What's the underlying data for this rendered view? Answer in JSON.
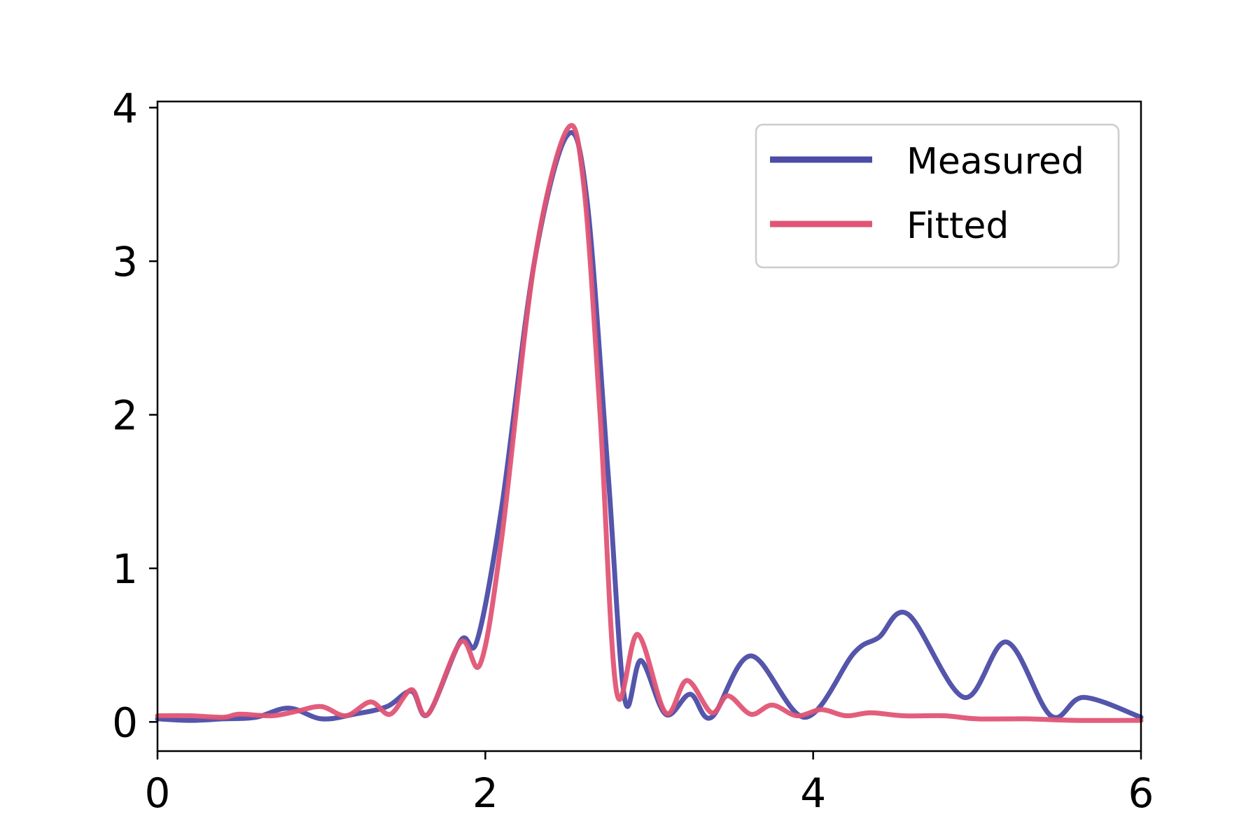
{
  "chart_data": {
    "type": "line",
    "title": "",
    "xlabel": "",
    "ylabel": "",
    "xlim": [
      0,
      6
    ],
    "ylim": [
      -0.19,
      4.04
    ],
    "xticks": [
      0,
      2,
      4,
      6
    ],
    "yticks": [
      0,
      1,
      2,
      3,
      4
    ],
    "grid": false,
    "legend_position": "top-right",
    "series": [
      {
        "name": "Measured",
        "color": "#4b4ca6",
        "points": [
          [
            0,
            0.02
          ],
          [
            0.2,
            0.01
          ],
          [
            0.4,
            0.02
          ],
          [
            0.6,
            0.03
          ],
          [
            0.8,
            0.09
          ],
          [
            1.0,
            0.02
          ],
          [
            1.2,
            0.05
          ],
          [
            1.4,
            0.1
          ],
          [
            1.55,
            0.2
          ],
          [
            1.65,
            0.05
          ],
          [
            1.85,
            0.53
          ],
          [
            1.95,
            0.53
          ],
          [
            2.1,
            1.4
          ],
          [
            2.3,
            3.0
          ],
          [
            2.5,
            3.82
          ],
          [
            2.62,
            3.4
          ],
          [
            2.75,
            1.6
          ],
          [
            2.85,
            0.15
          ],
          [
            2.95,
            0.4
          ],
          [
            3.1,
            0.05
          ],
          [
            3.25,
            0.18
          ],
          [
            3.38,
            0.03
          ],
          [
            3.62,
            0.43
          ],
          [
            3.95,
            0.03
          ],
          [
            4.25,
            0.45
          ],
          [
            4.4,
            0.55
          ],
          [
            4.58,
            0.7
          ],
          [
            4.92,
            0.16
          ],
          [
            5.18,
            0.52
          ],
          [
            5.45,
            0.04
          ],
          [
            5.65,
            0.16
          ],
          [
            6.0,
            0.03
          ]
        ]
      },
      {
        "name": "Fitted",
        "color": "#e05575",
        "points": [
          [
            0,
            0.04
          ],
          [
            0.2,
            0.04
          ],
          [
            0.4,
            0.03
          ],
          [
            0.5,
            0.05
          ],
          [
            0.7,
            0.04
          ],
          [
            0.85,
            0.07
          ],
          [
            1.0,
            0.1
          ],
          [
            1.15,
            0.04
          ],
          [
            1.3,
            0.13
          ],
          [
            1.42,
            0.05
          ],
          [
            1.55,
            0.21
          ],
          [
            1.65,
            0.05
          ],
          [
            1.85,
            0.52
          ],
          [
            1.97,
            0.38
          ],
          [
            2.1,
            1.2
          ],
          [
            2.3,
            3.0
          ],
          [
            2.5,
            3.86
          ],
          [
            2.6,
            3.5
          ],
          [
            2.7,
            2.0
          ],
          [
            2.8,
            0.2
          ],
          [
            2.93,
            0.57
          ],
          [
            3.1,
            0.06
          ],
          [
            3.23,
            0.27
          ],
          [
            3.38,
            0.06
          ],
          [
            3.48,
            0.17
          ],
          [
            3.62,
            0.05
          ],
          [
            3.75,
            0.11
          ],
          [
            3.9,
            0.04
          ],
          [
            4.05,
            0.08
          ],
          [
            4.2,
            0.04
          ],
          [
            4.35,
            0.06
          ],
          [
            4.55,
            0.04
          ],
          [
            4.8,
            0.04
          ],
          [
            5.0,
            0.02
          ],
          [
            5.3,
            0.02
          ],
          [
            5.6,
            0.01
          ],
          [
            6.0,
            0.01
          ]
        ]
      }
    ]
  }
}
